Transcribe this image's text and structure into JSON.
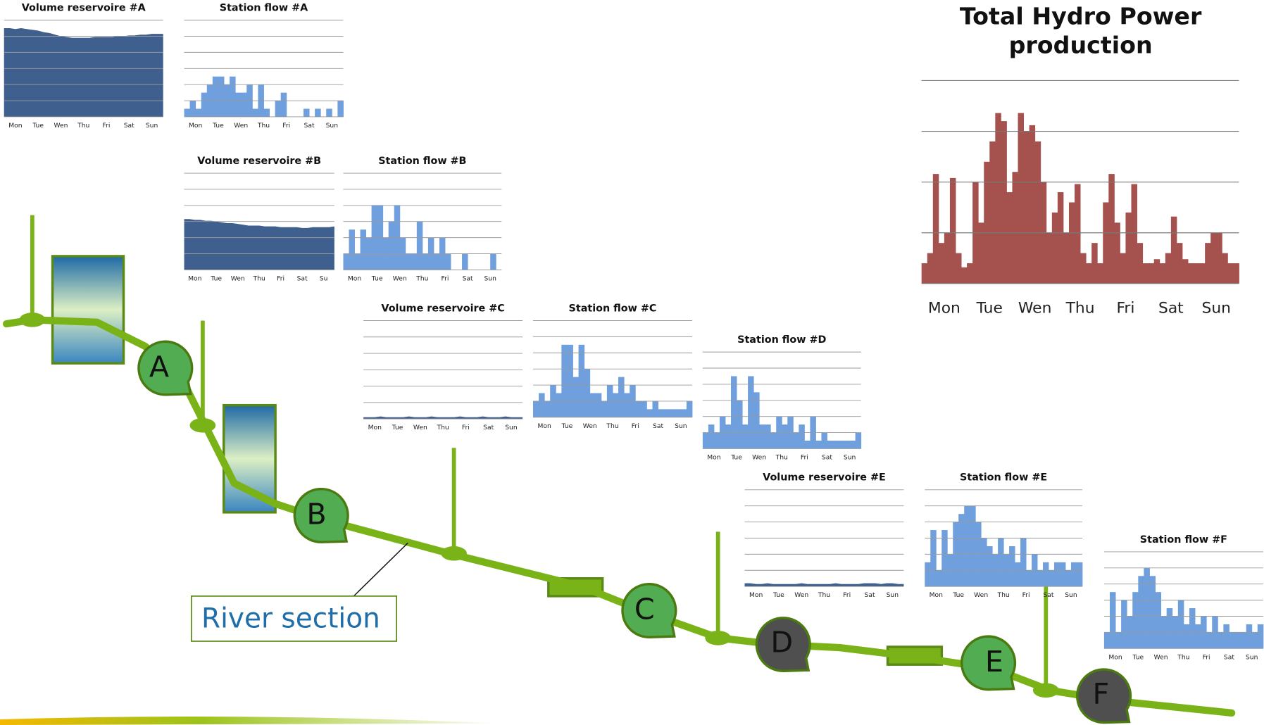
{
  "chart_data": [
    {
      "type": "area",
      "title": "Volume reservoire #A",
      "color": "#3f5f8f",
      "grid": true,
      "x": [
        0,
        1,
        2,
        3,
        4,
        5,
        6,
        7,
        8,
        9,
        10,
        11,
        12,
        13,
        14,
        15,
        16,
        17,
        18,
        19,
        20,
        21,
        22,
        23,
        24,
        25,
        26,
        27,
        28
      ],
      "values": [
        110,
        110,
        109,
        110,
        109,
        108,
        107,
        105,
        104,
        102,
        100,
        99,
        98,
        98,
        98,
        98,
        99,
        99,
        99,
        99,
        100,
        100,
        101,
        101,
        102,
        102,
        103,
        103,
        103
      ],
      "xlim": [
        0,
        28
      ],
      "xticks": [
        {
          "value": 2,
          "label": "Mon"
        },
        {
          "value": 6,
          "label": "Tue"
        },
        {
          "value": 10,
          "label": "Wen"
        },
        {
          "value": 14,
          "label": "Thu"
        },
        {
          "value": 18,
          "label": "Fri"
        },
        {
          "value": 22,
          "label": "Sat"
        },
        {
          "value": 26,
          "label": "Sun"
        }
      ],
      "ylim": [
        0,
        120
      ],
      "yticks": [
        0,
        20,
        40,
        60,
        80,
        100,
        120
      ]
    },
    {
      "type": "bar",
      "title": "Station flow #A",
      "color": "#6f9fdc",
      "grid": true,
      "x": [
        0,
        1,
        2,
        3,
        4,
        5,
        6,
        7,
        8,
        9,
        10,
        11,
        12,
        13,
        14,
        15,
        16,
        17,
        18,
        19,
        20,
        21,
        22,
        23,
        24,
        25,
        26,
        27
      ],
      "values": [
        10,
        20,
        10,
        30,
        40,
        50,
        50,
        40,
        50,
        30,
        30,
        40,
        10,
        40,
        10,
        0,
        20,
        30,
        0,
        0,
        0,
        10,
        0,
        10,
        0,
        10,
        0,
        20
      ],
      "xlim": [
        0,
        28
      ],
      "xticks": [
        {
          "value": 2,
          "label": "Mon"
        },
        {
          "value": 6,
          "label": "Tue"
        },
        {
          "value": 10,
          "label": "Wen"
        },
        {
          "value": 14,
          "label": "Thu"
        },
        {
          "value": 18,
          "label": "Fri"
        },
        {
          "value": 22,
          "label": "Sat"
        },
        {
          "value": 26,
          "label": "Sun"
        }
      ],
      "ylim": [
        0,
        120
      ],
      "yticks": [
        0,
        20,
        40,
        60,
        80,
        100,
        120
      ]
    },
    {
      "type": "area",
      "title": "Volume reservoire #B",
      "color": "#3f5f8f",
      "grid": true,
      "x": [
        0,
        1,
        2,
        3,
        4,
        5,
        6,
        7,
        8,
        9,
        10,
        11,
        12,
        13,
        14,
        15,
        16,
        17,
        18,
        19,
        20,
        21,
        22,
        23,
        24,
        25,
        26,
        27,
        28
      ],
      "values": [
        63,
        63,
        62,
        62,
        61,
        61,
        60,
        59,
        58,
        58,
        57,
        56,
        55,
        55,
        55,
        54,
        54,
        54,
        53,
        53,
        53,
        53,
        52,
        52,
        53,
        53,
        53,
        53,
        54
      ],
      "xlim": [
        0,
        28
      ],
      "xticks": [
        {
          "value": 2,
          "label": "Mon"
        },
        {
          "value": 6,
          "label": "Tue"
        },
        {
          "value": 10,
          "label": "Wen"
        },
        {
          "value": 14,
          "label": "Thu"
        },
        {
          "value": 18,
          "label": "Fri"
        },
        {
          "value": 22,
          "label": "Sat"
        },
        {
          "value": 26,
          "label": "Su"
        }
      ],
      "ylim": [
        0,
        120
      ],
      "yticks": [
        0,
        20,
        40,
        60,
        80,
        100,
        120
      ]
    },
    {
      "type": "bar",
      "title": "Station flow #B",
      "color": "#6f9fdc",
      "grid": true,
      "x": [
        0,
        1,
        2,
        3,
        4,
        5,
        6,
        7,
        8,
        9,
        10,
        11,
        12,
        13,
        14,
        15,
        16,
        17,
        18,
        19,
        20,
        21,
        22,
        23,
        24,
        25,
        26,
        27
      ],
      "values": [
        20,
        50,
        20,
        50,
        40,
        80,
        80,
        40,
        60,
        80,
        40,
        20,
        20,
        60,
        20,
        40,
        20,
        40,
        20,
        0,
        0,
        20,
        0,
        0,
        0,
        0,
        20,
        0
      ],
      "xlim": [
        0,
        28
      ],
      "xticks": [
        {
          "value": 2,
          "label": "Mon"
        },
        {
          "value": 6,
          "label": "Tue"
        },
        {
          "value": 10,
          "label": "Wen"
        },
        {
          "value": 14,
          "label": "Thu"
        },
        {
          "value": 18,
          "label": "Fri"
        },
        {
          "value": 22,
          "label": "Sat"
        },
        {
          "value": 26,
          "label": "Sun"
        }
      ],
      "ylim": [
        0,
        120
      ],
      "yticks": [
        0,
        20,
        40,
        60,
        80,
        100,
        120
      ]
    },
    {
      "type": "area",
      "title": "Volume reservoire #C",
      "color": "#3f5f8f",
      "grid": true,
      "x": [
        0,
        1,
        2,
        3,
        4,
        5,
        6,
        7,
        8,
        9,
        10,
        11,
        12,
        13,
        14,
        15,
        16,
        17,
        18,
        19,
        20,
        21,
        22,
        23,
        24,
        25,
        26,
        27,
        28
      ],
      "values": [
        2,
        2,
        2,
        3,
        2,
        2,
        2,
        2,
        3,
        2,
        2,
        2,
        3,
        2,
        2,
        2,
        2,
        3,
        2,
        2,
        2,
        3,
        2,
        2,
        2,
        3,
        2,
        2,
        2
      ],
      "xlim": [
        0,
        28
      ],
      "xticks": [
        {
          "value": 2,
          "label": "Mon"
        },
        {
          "value": 6,
          "label": "Tue"
        },
        {
          "value": 10,
          "label": "Wen"
        },
        {
          "value": 14,
          "label": "Thu"
        },
        {
          "value": 18,
          "label": "Fri"
        },
        {
          "value": 22,
          "label": "Sat"
        },
        {
          "value": 26,
          "label": "Sun"
        }
      ],
      "ylim": [
        0,
        120
      ],
      "yticks": [
        0,
        20,
        40,
        60,
        80,
        100,
        120
      ]
    },
    {
      "type": "bar",
      "title": "Station flow #C",
      "color": "#6f9fdc",
      "grid": true,
      "x": [
        0,
        1,
        2,
        3,
        4,
        5,
        6,
        7,
        8,
        9,
        10,
        11,
        12,
        13,
        14,
        15,
        16,
        17,
        18,
        19,
        20,
        21,
        22,
        23,
        24,
        25,
        26,
        27
      ],
      "values": [
        20,
        30,
        20,
        40,
        30,
        90,
        90,
        50,
        90,
        60,
        30,
        30,
        20,
        40,
        30,
        50,
        30,
        40,
        20,
        20,
        10,
        20,
        10,
        10,
        10,
        10,
        10,
        20
      ],
      "xlim": [
        0,
        28
      ],
      "xticks": [
        {
          "value": 2,
          "label": "Mon"
        },
        {
          "value": 6,
          "label": "Tue"
        },
        {
          "value": 10,
          "label": "Wen"
        },
        {
          "value": 14,
          "label": "Thu"
        },
        {
          "value": 18,
          "label": "Fri"
        },
        {
          "value": 22,
          "label": "Sat"
        },
        {
          "value": 26,
          "label": "Sun"
        }
      ],
      "ylim": [
        0,
        120
      ],
      "yticks": [
        0,
        20,
        40,
        60,
        80,
        100,
        120
      ]
    },
    {
      "type": "bar",
      "title": "Station flow #D",
      "color": "#6f9fdc",
      "grid": true,
      "x": [
        0,
        1,
        2,
        3,
        4,
        5,
        6,
        7,
        8,
        9,
        10,
        11,
        12,
        13,
        14,
        15,
        16,
        17,
        18,
        19,
        20,
        21,
        22,
        23,
        24,
        25,
        26,
        27
      ],
      "values": [
        20,
        30,
        20,
        40,
        30,
        90,
        60,
        30,
        90,
        70,
        30,
        30,
        20,
        40,
        30,
        40,
        20,
        30,
        10,
        40,
        10,
        20,
        10,
        10,
        10,
        10,
        10,
        20
      ],
      "xlim": [
        0,
        28
      ],
      "xticks": [
        {
          "value": 2,
          "label": "Mon"
        },
        {
          "value": 6,
          "label": "Tue"
        },
        {
          "value": 10,
          "label": "Wen"
        },
        {
          "value": 14,
          "label": "Thu"
        },
        {
          "value": 18,
          "label": "Fri"
        },
        {
          "value": 22,
          "label": "Sat"
        },
        {
          "value": 26,
          "label": "Sun"
        }
      ],
      "ylim": [
        0,
        120
      ],
      "yticks": [
        0,
        20,
        40,
        60,
        80,
        100,
        120
      ]
    },
    {
      "type": "area",
      "title": "Volume reservoire #E",
      "color": "#3f5f8f",
      "grid": true,
      "x": [
        0,
        1,
        2,
        3,
        4,
        5,
        6,
        7,
        8,
        9,
        10,
        11,
        12,
        13,
        14,
        15,
        16,
        17,
        18,
        19,
        20,
        21,
        22,
        23,
        24,
        25,
        26,
        27,
        28
      ],
      "values": [
        4,
        4,
        3,
        3,
        4,
        3,
        3,
        3,
        3,
        3,
        4,
        3,
        3,
        3,
        3,
        3,
        4,
        3,
        3,
        3,
        3,
        4,
        4,
        4,
        3,
        4,
        4,
        3,
        3
      ],
      "xlim": [
        0,
        28
      ],
      "xticks": [
        {
          "value": 2,
          "label": "Mon"
        },
        {
          "value": 6,
          "label": "Tue"
        },
        {
          "value": 10,
          "label": "Wen"
        },
        {
          "value": 14,
          "label": "Thu"
        },
        {
          "value": 18,
          "label": "Fri"
        },
        {
          "value": 22,
          "label": "Sat"
        },
        {
          "value": 26,
          "label": "Sun"
        }
      ],
      "ylim": [
        0,
        120
      ],
      "yticks": [
        0,
        20,
        40,
        60,
        80,
        100,
        120
      ]
    },
    {
      "type": "bar",
      "title": "Station flow #E",
      "color": "#6f9fdc",
      "grid": true,
      "x": [
        0,
        1,
        2,
        3,
        4,
        5,
        6,
        7,
        8,
        9,
        10,
        11,
        12,
        13,
        14,
        15,
        16,
        17,
        18,
        19,
        20,
        21,
        22,
        23,
        24,
        25,
        26,
        27
      ],
      "values": [
        30,
        70,
        20,
        70,
        40,
        80,
        90,
        100,
        100,
        80,
        60,
        50,
        40,
        60,
        40,
        50,
        30,
        60,
        20,
        40,
        20,
        30,
        20,
        30,
        30,
        20,
        30,
        30
      ],
      "xlim": [
        0,
        28
      ],
      "xticks": [
        {
          "value": 2,
          "label": "Mon"
        },
        {
          "value": 6,
          "label": "Tue"
        },
        {
          "value": 10,
          "label": "Wen"
        },
        {
          "value": 14,
          "label": "Thu"
        },
        {
          "value": 18,
          "label": "Fri"
        },
        {
          "value": 22,
          "label": "Sat"
        },
        {
          "value": 26,
          "label": "Sun"
        }
      ],
      "ylim": [
        0,
        120
      ],
      "yticks": [
        0,
        20,
        40,
        60,
        80,
        100,
        120
      ]
    },
    {
      "type": "bar",
      "title": "Station flow #F",
      "color": "#6f9fdc",
      "grid": true,
      "x": [
        0,
        1,
        2,
        3,
        4,
        5,
        6,
        7,
        8,
        9,
        10,
        11,
        12,
        13,
        14,
        15,
        16,
        17,
        18,
        19,
        20,
        21,
        22,
        23,
        24,
        25,
        26,
        27
      ],
      "values": [
        20,
        70,
        20,
        60,
        40,
        70,
        90,
        100,
        90,
        70,
        40,
        50,
        40,
        60,
        30,
        50,
        30,
        40,
        20,
        40,
        20,
        30,
        20,
        20,
        20,
        30,
        20,
        30
      ],
      "xlim": [
        0,
        28
      ],
      "xticks": [
        {
          "value": 2,
          "label": "Mon"
        },
        {
          "value": 6,
          "label": "Tue"
        },
        {
          "value": 10,
          "label": "Wen"
        },
        {
          "value": 14,
          "label": "Thu"
        },
        {
          "value": 18,
          "label": "Fri"
        },
        {
          "value": 22,
          "label": "Sat"
        },
        {
          "value": 26,
          "label": "Sun"
        }
      ],
      "ylim": [
        0,
        120
      ],
      "yticks": [
        0,
        20,
        40,
        60,
        80,
        100,
        120
      ]
    },
    {
      "type": "bar",
      "title": "Total Hydro Power production",
      "color": "#a5524f",
      "grid": true,
      "x": [
        0,
        1,
        2,
        3,
        4,
        5,
        6,
        7,
        8,
        9,
        10,
        11,
        12,
        13,
        14,
        15,
        16,
        17,
        18,
        19,
        20,
        21,
        22,
        23,
        24,
        25,
        26,
        27,
        28,
        29,
        30,
        31,
        32,
        33,
        34,
        35,
        36,
        37,
        38,
        39,
        40,
        41,
        42,
        43,
        44,
        45,
        46,
        47,
        48,
        49,
        50,
        51,
        52,
        53,
        54,
        55
      ],
      "values": [
        10,
        15,
        54,
        20,
        25,
        52,
        15,
        8,
        10,
        50,
        30,
        60,
        70,
        84,
        80,
        45,
        55,
        84,
        75,
        78,
        70,
        50,
        25,
        35,
        45,
        25,
        40,
        49,
        15,
        10,
        20,
        10,
        40,
        54,
        30,
        15,
        35,
        49,
        20,
        10,
        10,
        12,
        10,
        15,
        33,
        20,
        12,
        10,
        10,
        10,
        20,
        25,
        25,
        15,
        10,
        10
      ],
      "xlim": [
        0,
        56
      ],
      "xticks": [
        {
          "value": 4,
          "label": "Mon"
        },
        {
          "value": 12,
          "label": "Tue"
        },
        {
          "value": 20,
          "label": "Wen"
        },
        {
          "value": 28,
          "label": "Thu"
        },
        {
          "value": 36,
          "label": "Fri"
        },
        {
          "value": 44,
          "label": "Sat"
        },
        {
          "value": 52,
          "label": "Sun"
        }
      ],
      "ylim": [
        0,
        100
      ],
      "yticks": [
        0,
        25,
        50,
        75,
        100
      ]
    }
  ],
  "diagram": {
    "nodes": [
      "A",
      "B",
      "C",
      "D",
      "E",
      "F"
    ],
    "callout": "River section"
  }
}
